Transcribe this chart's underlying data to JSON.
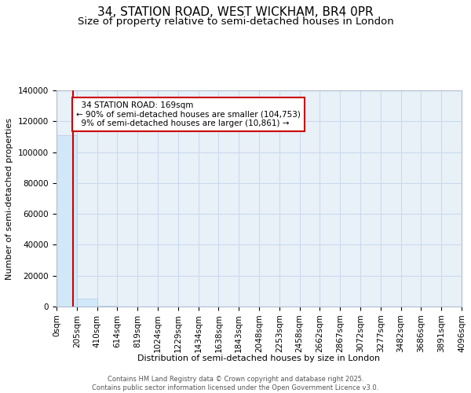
{
  "title": "34, STATION ROAD, WEST WICKHAM, BR4 0PR",
  "subtitle": "Size of property relative to semi-detached houses in London",
  "xlabel": "Distribution of semi-detached houses by size in London",
  "ylabel": "Number of semi-detached properties",
  "footer": "Contains HM Land Registry data © Crown copyright and database right 2025.\nContains public sector information licensed under the Open Government Licence v3.0.",
  "bar_edges": [
    0,
    205,
    410,
    614,
    819,
    1024,
    1229,
    1434,
    1638,
    1843,
    2048,
    2253,
    2458,
    2662,
    2867,
    3072,
    3277,
    3482,
    3686,
    3891,
    4096
  ],
  "bar_heights": [
    111000,
    5000,
    400,
    150,
    70,
    40,
    25,
    18,
    12,
    8,
    6,
    5,
    4,
    3,
    2,
    2,
    2,
    1,
    1,
    1
  ],
  "bar_color": "#d0e8f8",
  "bar_edge_color": "#b0cce0",
  "property_size": 169,
  "property_label": "34 STATION ROAD: 169sqm",
  "smaller_pct": "90%",
  "smaller_count": "104,753",
  "larger_pct": "9%",
  "larger_count": "10,861",
  "vline_color": "#cc0000",
  "annotation_box_edgecolor": "#cc0000",
  "ylim": [
    0,
    140000
  ],
  "yticks": [
    0,
    20000,
    40000,
    60000,
    80000,
    100000,
    120000,
    140000
  ],
  "grid_color": "#c8d8ec",
  "bg_color": "#e8f0f8",
  "title_fontsize": 11,
  "subtitle_fontsize": 9.5,
  "ylabel_fontsize": 8,
  "xlabel_fontsize": 8,
  "tick_fontsize": 7.5,
  "annotation_fontsize": 7.5,
  "footer_fontsize": 6
}
